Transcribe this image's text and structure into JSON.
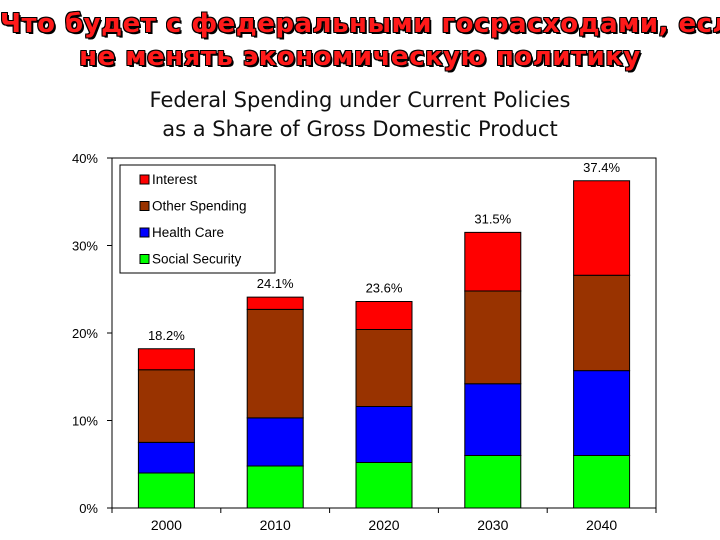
{
  "header": {
    "title_line1": "Что будет с федеральными госрасходами, если",
    "title_line2": "не менять экономическую политику"
  },
  "chart_data": {
    "type": "bar",
    "stacked": true,
    "title_line1": "Federal Spending under Current Policies",
    "title_line2": "as a Share of Gross Domestic Product",
    "categories": [
      "2000",
      "2010",
      "2020",
      "2030",
      "2040"
    ],
    "series": [
      {
        "name": "Social Security",
        "color": "#00ff00",
        "values": [
          4.0,
          4.8,
          5.2,
          6.0,
          6.0
        ]
      },
      {
        "name": "Health Care",
        "color": "#0000ff",
        "values": [
          3.5,
          5.5,
          6.4,
          8.2,
          9.7
        ]
      },
      {
        "name": "Other Spending",
        "color": "#993300",
        "values": [
          8.3,
          12.4,
          8.8,
          10.6,
          10.9
        ]
      },
      {
        "name": "Interest",
        "color": "#ff0000",
        "values": [
          2.4,
          1.4,
          3.2,
          6.7,
          10.8
        ]
      }
    ],
    "totals": [
      "18.2%",
      "24.1%",
      "23.6%",
      "31.5%",
      "37.4%"
    ],
    "y_ticks": [
      "0%",
      "10%",
      "20%",
      "30%",
      "40%"
    ],
    "ylim": [
      0,
      40
    ],
    "legend_order": [
      "Interest",
      "Other Spending",
      "Health Care",
      "Social Security"
    ],
    "legend_position": "top-left",
    "grid": false
  }
}
